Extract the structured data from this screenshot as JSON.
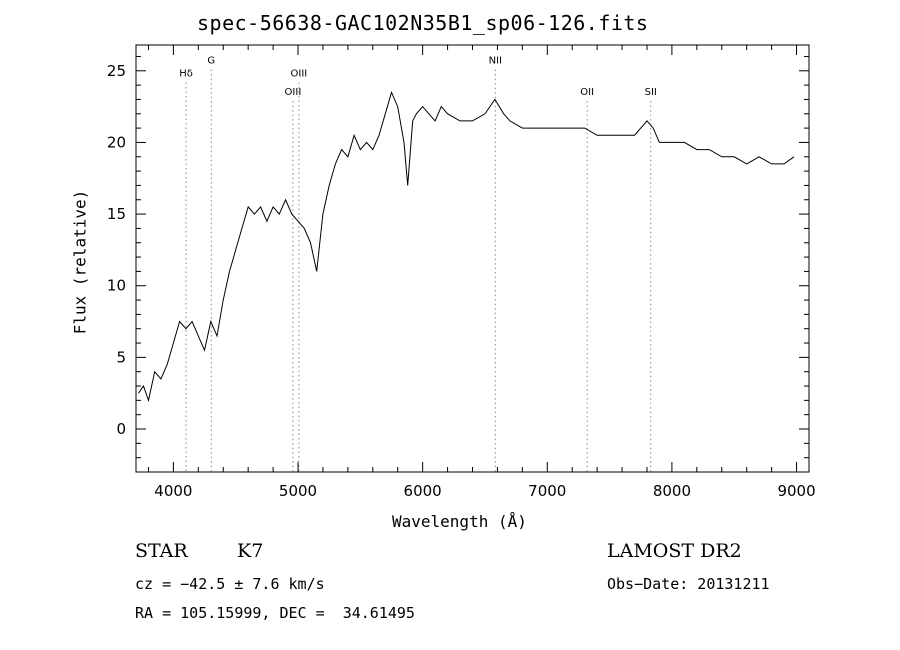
{
  "chart_data": {
    "type": "line",
    "title": "spec-56638-GAC102N35B1_sp06-126.fits",
    "xlabel": "Wavelength (Å)",
    "ylabel": "Flux (relative)",
    "xlim": [
      3700,
      9100
    ],
    "ylim": [
      -3,
      26.8
    ],
    "x_ticks": [
      4000,
      5000,
      6000,
      7000,
      8000,
      9000
    ],
    "y_ticks": [
      0,
      5,
      10,
      15,
      20,
      25
    ],
    "grid": false,
    "line_color": "#000000",
    "marker_color": "#888888",
    "spectral_lines": [
      {
        "name": "Hδ",
        "wavelength": 4102,
        "label_y": 24.6
      },
      {
        "name": "G",
        "wavelength": 4304,
        "label_y": 25.5
      },
      {
        "name": "OIII",
        "wavelength": 4959,
        "label_y": 23.3
      },
      {
        "name": "OIII",
        "wavelength": 5007,
        "label_y": 24.6
      },
      {
        "name": "NII",
        "wavelength": 6583,
        "label_y": 25.5
      },
      {
        "name": "OII",
        "wavelength": 7320,
        "label_y": 23.3
      },
      {
        "name": "SII",
        "wavelength": 7830,
        "label_y": 23.3
      }
    ],
    "series": [
      {
        "x": [
          3720,
          3760,
          3800,
          3850,
          3900,
          3950,
          4000,
          4050,
          4100,
          4150,
          4200,
          4250,
          4300,
          4350,
          4400,
          4450,
          4500,
          4550,
          4600,
          4650,
          4700,
          4750,
          4800,
          4850,
          4900,
          4950,
          5000,
          5050,
          5100,
          5150,
          5200,
          5250,
          5300,
          5350,
          5400,
          5450,
          5500,
          5550,
          5600,
          5650,
          5700,
          5750,
          5800,
          5850,
          5880,
          5920,
          5950,
          6000,
          6050,
          6100,
          6150,
          6200,
          6300,
          6400,
          6500,
          6580,
          6650,
          6700,
          6800,
          6900,
          7000,
          7100,
          7200,
          7300,
          7400,
          7500,
          7600,
          7700,
          7800,
          7850,
          7900,
          8000,
          8100,
          8200,
          8300,
          8400,
          8500,
          8600,
          8700,
          8800,
          8900,
          8980
        ],
        "y": [
          2.5,
          3.0,
          2.0,
          4.0,
          3.5,
          4.5,
          6.0,
          7.5,
          7.0,
          7.5,
          6.5,
          5.5,
          7.5,
          6.5,
          9.0,
          11.0,
          12.5,
          14.0,
          15.5,
          15.0,
          15.5,
          14.5,
          15.5,
          15.0,
          16.0,
          15.0,
          14.5,
          14.0,
          13.0,
          11.0,
          15.0,
          17.0,
          18.5,
          19.5,
          19.0,
          20.5,
          19.5,
          20.0,
          19.5,
          20.5,
          22.0,
          23.5,
          22.5,
          20.0,
          17.0,
          21.5,
          22.0,
          22.5,
          22.0,
          21.5,
          22.5,
          22.0,
          21.5,
          21.5,
          22.0,
          23.0,
          22.0,
          21.5,
          21.0,
          21.0,
          21.0,
          21.0,
          21.0,
          21.0,
          20.5,
          20.5,
          20.5,
          20.5,
          21.5,
          21.0,
          20.0,
          20.0,
          20.0,
          19.5,
          19.5,
          19.0,
          19.0,
          18.5,
          19.0,
          18.5,
          18.5,
          19.0
        ]
      }
    ]
  },
  "info": {
    "object_class": "STAR",
    "subclass": "K7",
    "survey": "LAMOST DR2",
    "cz": "cz = −42.5 ± 7.6 km/s",
    "obs_date": "Obs−Date: 20131211",
    "coords": "RA = 105.15999, DEC =  34.61495"
  }
}
